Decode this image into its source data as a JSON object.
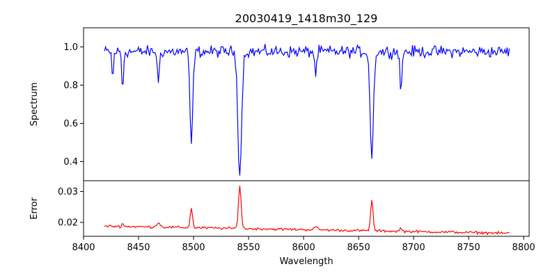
{
  "chart_data": [
    {
      "type": "line",
      "title": "20030419_1418m30_129",
      "xlabel": "",
      "ylabel": "Spectrum",
      "xlim": [
        8400,
        8805
      ],
      "ylim": [
        0.3,
        1.1
      ],
      "yticks": [
        0.4,
        0.6,
        0.8,
        1.0
      ],
      "ytick_labels": [
        "0.4",
        "0.6",
        "0.8",
        "1.0"
      ],
      "grid": false,
      "series": [
        {
          "color": "#0000ff",
          "x_range": [
            8419,
            8787
          ],
          "x_step": 1.0,
          "continuum": 0.975,
          "noise_amplitude": 0.045,
          "absorption_lines": [
            {
              "center": 8498.0,
              "depth": 0.48,
              "width": 1.3
            },
            {
              "center": 8542.0,
              "depth": 0.64,
              "width": 1.7
            },
            {
              "center": 8662.0,
              "depth": 0.55,
              "width": 1.5
            },
            {
              "center": 8435.5,
              "depth": 0.2,
              "width": 0.8
            },
            {
              "center": 8426.5,
              "depth": 0.15,
              "width": 0.7
            },
            {
              "center": 8468.0,
              "depth": 0.18,
              "width": 0.8
            },
            {
              "center": 8688.5,
              "depth": 0.23,
              "width": 0.8
            },
            {
              "center": 8611.0,
              "depth": 0.12,
              "width": 0.9
            }
          ]
        }
      ]
    },
    {
      "type": "line",
      "title": "",
      "xlabel": "Wavelength",
      "ylabel": "Error",
      "xlim": [
        8400,
        8805
      ],
      "ylim": [
        0.0155,
        0.0335
      ],
      "xticks": [
        8400,
        8450,
        8500,
        8550,
        8600,
        8650,
        8700,
        8750,
        8800
      ],
      "xtick_labels": [
        "8400",
        "8450",
        "8500",
        "8550",
        "8600",
        "8650",
        "8700",
        "8750",
        "8800"
      ],
      "yticks": [
        0.02,
        0.03
      ],
      "ytick_labels": [
        "0.02",
        "0.03"
      ],
      "grid": false,
      "series": [
        {
          "color": "#ff0000",
          "x_range": [
            8419,
            8787
          ],
          "x_step": 1.0,
          "baseline_start": 0.0188,
          "baseline_end": 0.0165,
          "noise_amplitude": 0.0006,
          "emission_peaks": [
            {
              "center": 8498.0,
              "height": 0.0065,
              "width": 1.0
            },
            {
              "center": 8542.0,
              "height": 0.014,
              "width": 1.2
            },
            {
              "center": 8662.0,
              "height": 0.01,
              "width": 1.1
            },
            {
              "center": 8435.5,
              "height": 0.001,
              "width": 0.8
            },
            {
              "center": 8468.0,
              "height": 0.0015,
              "width": 1.5
            },
            {
              "center": 8688.5,
              "height": 0.0012,
              "width": 0.8
            },
            {
              "center": 8611.0,
              "height": 0.0008,
              "width": 2.0
            }
          ]
        }
      ]
    }
  ]
}
